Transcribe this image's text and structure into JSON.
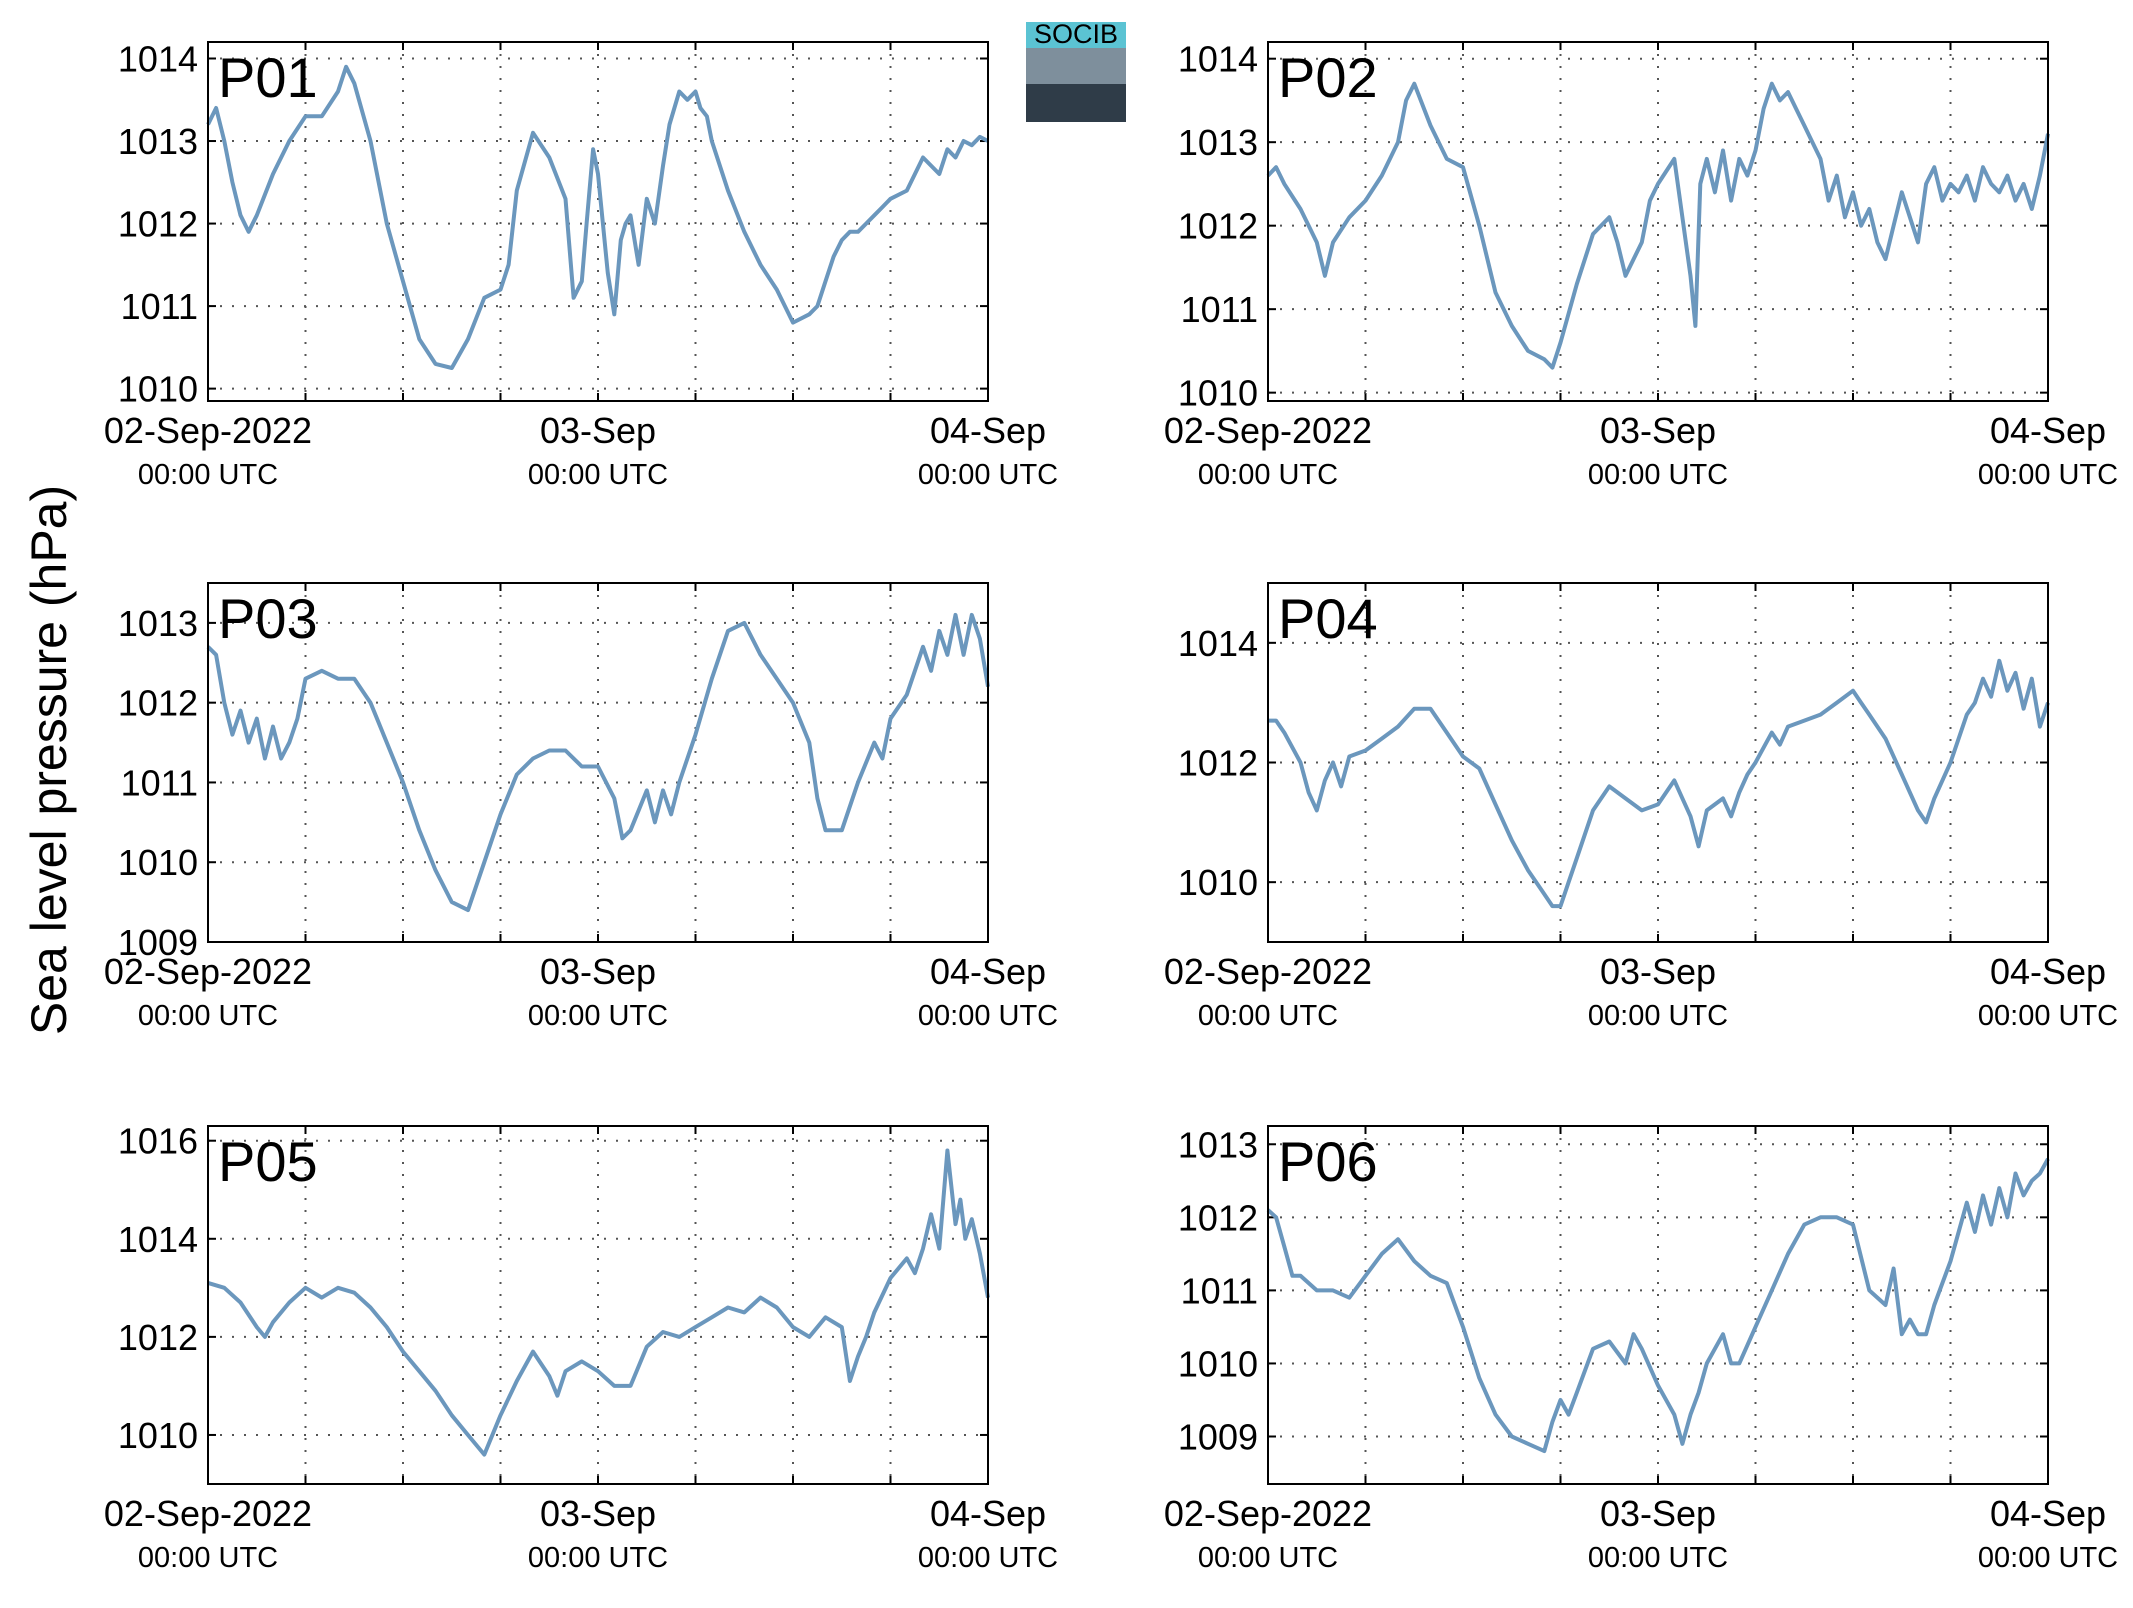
{
  "ylabel": "Sea level pressure (hPa)",
  "logo": {
    "text": "SOCIB",
    "colors": {
      "top": "#5bc3d3",
      "mid": "#7e8f9c",
      "bottom": "#2f3c48"
    }
  },
  "colors": {
    "line": "#6b97bd",
    "label": "#ff0000",
    "axis": "#000000",
    "grid": "#555555"
  },
  "x_ticks": [
    {
      "value": 0,
      "date": "02-Sep-2022",
      "time": "00:00 UTC"
    },
    {
      "value": 24,
      "date": "03-Sep",
      "time": "00:00 UTC"
    },
    {
      "value": 48,
      "date": "04-Sep",
      "time": "00:00 UTC"
    }
  ],
  "x_unit": "hours since 02-Sep-2022 00:00 UTC",
  "x_minor_step_hours": 6,
  "chart_data": [
    {
      "type": "line",
      "label": "P01",
      "xlim": [
        0,
        48
      ],
      "ylim": [
        1009.85,
        1014.2
      ],
      "yticks": [
        1010,
        1011,
        1012,
        1013,
        1014
      ],
      "grid": true,
      "series": [
        {
          "x": [
            0,
            0.5,
            1,
            1.5,
            2,
            2.5,
            3,
            4,
            5,
            6,
            7,
            8,
            8.5,
            9,
            10,
            11,
            12,
            13,
            14,
            15,
            16,
            17,
            18,
            18.5,
            19,
            20,
            21,
            22,
            22.5,
            23,
            23.3,
            23.7,
            24,
            24.3,
            24.6,
            25,
            25.4,
            25.7,
            26,
            26.5,
            27,
            27.5,
            28,
            28.4,
            28.7,
            29,
            29.5,
            30,
            30.3,
            30.7,
            31,
            32,
            33,
            34,
            35,
            36,
            37,
            37.5,
            38,
            38.5,
            39,
            39.5,
            40,
            40.5,
            41,
            41.5,
            42,
            43,
            44,
            45,
            45.5,
            46,
            46.5,
            47,
            47.5,
            48
          ],
          "y": [
            1013.2,
            1013.4,
            1013.0,
            1012.5,
            1012.1,
            1011.9,
            1012.1,
            1012.6,
            1013.0,
            1013.3,
            1013.3,
            1013.6,
            1013.9,
            1013.7,
            1013.0,
            1012.0,
            1011.3,
            1010.6,
            1010.3,
            1010.25,
            1010.6,
            1011.1,
            1011.2,
            1011.5,
            1012.4,
            1013.1,
            1012.8,
            1012.3,
            1011.1,
            1011.3,
            1012.0,
            1012.9,
            1012.6,
            1012.0,
            1011.4,
            1010.9,
            1011.8,
            1012.0,
            1012.1,
            1011.5,
            1012.3,
            1012.0,
            1012.7,
            1013.2,
            1013.4,
            1013.6,
            1013.5,
            1013.6,
            1013.4,
            1013.3,
            1013.0,
            1012.4,
            1011.9,
            1011.5,
            1011.2,
            1010.8,
            1010.9,
            1011.0,
            1011.3,
            1011.6,
            1011.8,
            1011.9,
            1011.9,
            1012.0,
            1012.1,
            1012.2,
            1012.3,
            1012.4,
            1012.8,
            1012.6,
            1012.9,
            1012.8,
            1013.0,
            1012.95,
            1013.05,
            1013.0
          ]
        }
      ]
    },
    {
      "type": "line",
      "label": "P02",
      "xlim": [
        0,
        48
      ],
      "ylim": [
        1009.9,
        1014.2
      ],
      "yticks": [
        1010,
        1011,
        1012,
        1013,
        1014
      ],
      "grid": true,
      "series": [
        {
          "x": [
            0,
            0.5,
            1,
            2,
            3,
            3.5,
            4,
            5,
            6,
            7,
            8,
            8.5,
            9,
            10,
            11,
            12,
            13,
            14,
            15,
            16,
            17,
            17.5,
            18,
            19,
            20,
            21,
            21.5,
            22,
            22.5,
            23,
            23.5,
            24,
            25,
            26,
            26.3,
            26.6,
            27,
            27.5,
            28,
            28.5,
            29,
            29.5,
            30,
            30.5,
            31,
            31.5,
            32,
            32.5,
            33,
            33.5,
            34,
            34.5,
            35,
            35.5,
            36,
            36.5,
            37,
            37.5,
            38,
            38.5,
            39,
            39.5,
            40,
            40.5,
            41,
            41.5,
            42,
            42.5,
            43,
            43.5,
            44,
            44.5,
            45,
            45.5,
            46,
            46.5,
            47,
            47.5,
            48
          ],
          "y": [
            1012.6,
            1012.7,
            1012.5,
            1012.2,
            1011.8,
            1011.4,
            1011.8,
            1012.1,
            1012.3,
            1012.6,
            1013.0,
            1013.5,
            1013.7,
            1013.2,
            1012.8,
            1012.7,
            1012.0,
            1011.2,
            1010.8,
            1010.5,
            1010.4,
            1010.3,
            1010.6,
            1011.3,
            1011.9,
            1012.1,
            1011.8,
            1011.4,
            1011.6,
            1011.8,
            1012.3,
            1012.5,
            1012.8,
            1011.4,
            1010.8,
            1012.5,
            1012.8,
            1012.4,
            1012.9,
            1012.3,
            1012.8,
            1012.6,
            1012.9,
            1013.4,
            1013.7,
            1013.5,
            1013.6,
            1013.4,
            1013.2,
            1013.0,
            1012.8,
            1012.3,
            1012.6,
            1012.1,
            1012.4,
            1012.0,
            1012.2,
            1011.8,
            1011.6,
            1012.0,
            1012.4,
            1012.1,
            1011.8,
            1012.5,
            1012.7,
            1012.3,
            1012.5,
            1012.4,
            1012.6,
            1012.3,
            1012.7,
            1012.5,
            1012.4,
            1012.6,
            1012.3,
            1012.5,
            1012.2,
            1012.6,
            1013.1
          ]
        }
      ]
    },
    {
      "type": "line",
      "label": "P03",
      "xlim": [
        0,
        48
      ],
      "ylim": [
        1009.0,
        1013.5
      ],
      "yticks": [
        1009,
        1010,
        1011,
        1012,
        1013
      ],
      "grid": true,
      "series": [
        {
          "x": [
            0,
            0.5,
            1,
            1.5,
            2,
            2.5,
            3,
            3.5,
            4,
            4.5,
            5,
            5.5,
            6,
            7,
            8,
            9,
            10,
            11,
            12,
            13,
            14,
            15,
            16,
            17,
            18,
            19,
            20,
            21,
            22,
            23,
            24,
            25,
            25.5,
            26,
            27,
            27.5,
            28,
            28.5,
            29,
            30,
            31,
            31.5,
            32,
            33,
            33.5,
            34,
            35,
            36,
            37,
            37.5,
            38,
            39,
            40,
            41,
            41.5,
            42,
            43,
            43.5,
            44,
            44.5,
            45,
            45.5,
            46,
            46.5,
            47,
            47.5,
            48
          ],
          "y": [
            1012.7,
            1012.6,
            1012.0,
            1011.6,
            1011.9,
            1011.5,
            1011.8,
            1011.3,
            1011.7,
            1011.3,
            1011.5,
            1011.8,
            1012.3,
            1012.4,
            1012.3,
            1012.3,
            1012.0,
            1011.5,
            1011.0,
            1010.4,
            1009.9,
            1009.5,
            1009.4,
            1010.0,
            1010.6,
            1011.1,
            1011.3,
            1011.4,
            1011.4,
            1011.2,
            1011.2,
            1010.8,
            1010.3,
            1010.4,
            1010.9,
            1010.5,
            1010.9,
            1010.6,
            1011.0,
            1011.6,
            1012.3,
            1012.6,
            1012.9,
            1013.0,
            1012.8,
            1012.6,
            1012.3,
            1012.0,
            1011.5,
            1010.8,
            1010.4,
            1010.4,
            1011.0,
            1011.5,
            1011.3,
            1011.8,
            1012.1,
            1012.4,
            1012.7,
            1012.4,
            1012.9,
            1012.6,
            1013.1,
            1012.6,
            1013.1,
            1012.8,
            1012.2
          ]
        }
      ]
    },
    {
      "type": "line",
      "label": "P04",
      "xlim": [
        0,
        48
      ],
      "ylim": [
        1009.0,
        1015.0
      ],
      "yticks": [
        1010,
        1012,
        1014
      ],
      "grid": true,
      "series": [
        {
          "x": [
            0,
            0.5,
            1,
            2,
            2.5,
            3,
            3.5,
            4,
            4.5,
            5,
            6,
            7,
            8,
            9,
            10,
            11,
            12,
            13,
            14,
            15,
            16,
            17,
            17.5,
            18,
            18.5,
            19,
            20,
            21,
            22,
            23,
            24,
            25,
            25.5,
            26,
            26.5,
            27,
            28,
            28.5,
            29,
            29.5,
            30,
            31,
            31.5,
            32,
            33,
            34,
            35,
            36,
            36.5,
            37,
            38,
            39,
            40,
            40.5,
            41,
            42,
            43,
            43.5,
            44,
            44.5,
            45,
            45.5,
            46,
            46.5,
            47,
            47.5,
            48
          ],
          "y": [
            1012.7,
            1012.7,
            1012.5,
            1012.0,
            1011.5,
            1011.2,
            1011.7,
            1012.0,
            1011.6,
            1012.1,
            1012.2,
            1012.4,
            1012.6,
            1012.9,
            1012.9,
            1012.5,
            1012.1,
            1011.9,
            1011.3,
            1010.7,
            1010.2,
            1009.8,
            1009.6,
            1009.6,
            1010.0,
            1010.4,
            1011.2,
            1011.6,
            1011.4,
            1011.2,
            1011.3,
            1011.7,
            1011.4,
            1011.1,
            1010.6,
            1011.2,
            1011.4,
            1011.1,
            1011.5,
            1011.8,
            1012.0,
            1012.5,
            1012.3,
            1012.6,
            1012.7,
            1012.8,
            1013.0,
            1013.2,
            1013.0,
            1012.8,
            1012.4,
            1011.8,
            1011.2,
            1011.0,
            1011.4,
            1012.0,
            1012.8,
            1013.0,
            1013.4,
            1013.1,
            1013.7,
            1013.2,
            1013.5,
            1012.9,
            1013.4,
            1012.6,
            1013.0
          ]
        }
      ]
    },
    {
      "type": "line",
      "label": "P05",
      "xlim": [
        0,
        48
      ],
      "ylim": [
        1009.0,
        1016.3
      ],
      "yticks": [
        1010,
        1012,
        1014,
        1016
      ],
      "grid": true,
      "series": [
        {
          "x": [
            0,
            1,
            2,
            3,
            3.5,
            4,
            5,
            6,
            7,
            8,
            9,
            10,
            11,
            12,
            13,
            14,
            15,
            16,
            17,
            18,
            19,
            20,
            21,
            21.5,
            22,
            23,
            24,
            25,
            26,
            27,
            28,
            29,
            30,
            31,
            32,
            33,
            34,
            35,
            36,
            37,
            38,
            39,
            39.5,
            40,
            40.5,
            41,
            42,
            43,
            43.5,
            44,
            44.5,
            45,
            45.5,
            46,
            46.3,
            46.6,
            47,
            47.5,
            48
          ],
          "y": [
            1013.1,
            1013.0,
            1012.7,
            1012.2,
            1012.0,
            1012.3,
            1012.7,
            1013.0,
            1012.8,
            1013.0,
            1012.9,
            1012.6,
            1012.2,
            1011.7,
            1011.3,
            1010.9,
            1010.4,
            1010.0,
            1009.6,
            1010.4,
            1011.1,
            1011.7,
            1011.2,
            1010.8,
            1011.3,
            1011.5,
            1011.3,
            1011.0,
            1011.0,
            1011.8,
            1012.1,
            1012.0,
            1012.2,
            1012.4,
            1012.6,
            1012.5,
            1012.8,
            1012.6,
            1012.2,
            1012.0,
            1012.4,
            1012.2,
            1011.1,
            1011.6,
            1012.0,
            1012.5,
            1013.2,
            1013.6,
            1013.3,
            1013.8,
            1014.5,
            1013.8,
            1015.8,
            1014.3,
            1014.8,
            1014.0,
            1014.4,
            1013.7,
            1012.8
          ]
        }
      ]
    },
    {
      "type": "line",
      "label": "P06",
      "xlim": [
        0,
        48
      ],
      "ylim": [
        1008.35,
        1013.25
      ],
      "yticks": [
        1009,
        1010,
        1011,
        1012,
        1013
      ],
      "grid": true,
      "series": [
        {
          "x": [
            0,
            0.5,
            1,
            1.5,
            2,
            3,
            4,
            5,
            6,
            7,
            8,
            9,
            10,
            11,
            12,
            13,
            14,
            15,
            16,
            17,
            17.5,
            18,
            18.5,
            19,
            20,
            21,
            22,
            22.5,
            23,
            24,
            25,
            25.5,
            26,
            26.5,
            27,
            28,
            28.5,
            29,
            30,
            31,
            32,
            33,
            34,
            35,
            36,
            37,
            38,
            38.5,
            39,
            39.5,
            40,
            40.5,
            41,
            42,
            43,
            43.5,
            44,
            44.5,
            45,
            45.5,
            46,
            46.5,
            47,
            47.5,
            48
          ],
          "y": [
            1012.1,
            1012.0,
            1011.6,
            1011.2,
            1011.2,
            1011.0,
            1011.0,
            1010.9,
            1011.2,
            1011.5,
            1011.7,
            1011.4,
            1011.2,
            1011.1,
            1010.5,
            1009.8,
            1009.3,
            1009.0,
            1008.9,
            1008.8,
            1009.2,
            1009.5,
            1009.3,
            1009.6,
            1010.2,
            1010.3,
            1010.0,
            1010.4,
            1010.2,
            1009.7,
            1009.3,
            1008.9,
            1009.3,
            1009.6,
            1010.0,
            1010.4,
            1010.0,
            1010.0,
            1010.5,
            1011.0,
            1011.5,
            1011.9,
            1012.0,
            1012.0,
            1011.9,
            1011.0,
            1010.8,
            1011.3,
            1010.4,
            1010.6,
            1010.4,
            1010.4,
            1010.8,
            1011.4,
            1012.2,
            1011.8,
            1012.3,
            1011.9,
            1012.4,
            1012.0,
            1012.6,
            1012.3,
            1012.5,
            1012.6,
            1012.8
          ]
        }
      ]
    }
  ]
}
